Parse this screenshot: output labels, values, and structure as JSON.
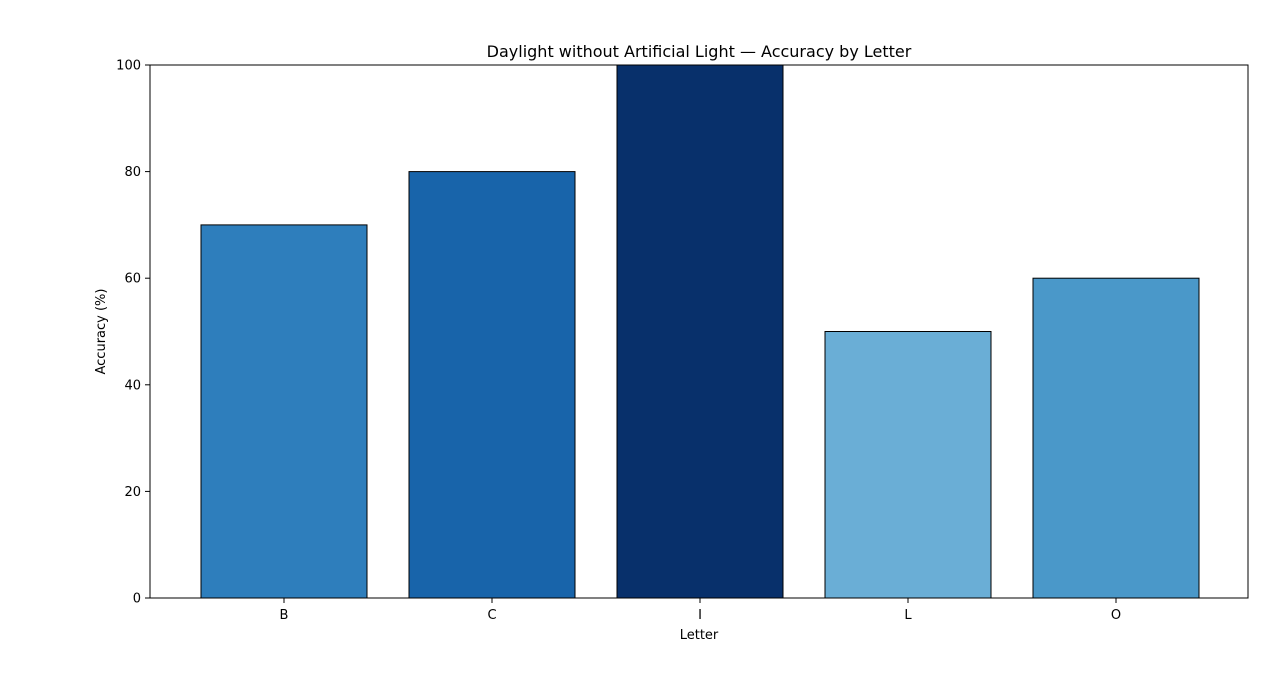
{
  "chart_data": {
    "type": "bar",
    "title": "Daylight without Artificial Light — Accuracy by Letter",
    "xlabel": "Letter",
    "ylabel": "Accuracy (%)",
    "categories": [
      "B",
      "C",
      "I",
      "L",
      "O"
    ],
    "values": [
      70,
      80,
      100,
      50,
      60
    ],
    "colors": [
      "#2e7ebc",
      "#1864aa",
      "#08306b",
      "#6aaed6",
      "#4a98c9"
    ],
    "edge_color": "#000000",
    "ylim": [
      0,
      100
    ],
    "yticks": [
      0,
      20,
      40,
      60,
      80,
      100
    ],
    "grid": false,
    "legend": "none"
  }
}
